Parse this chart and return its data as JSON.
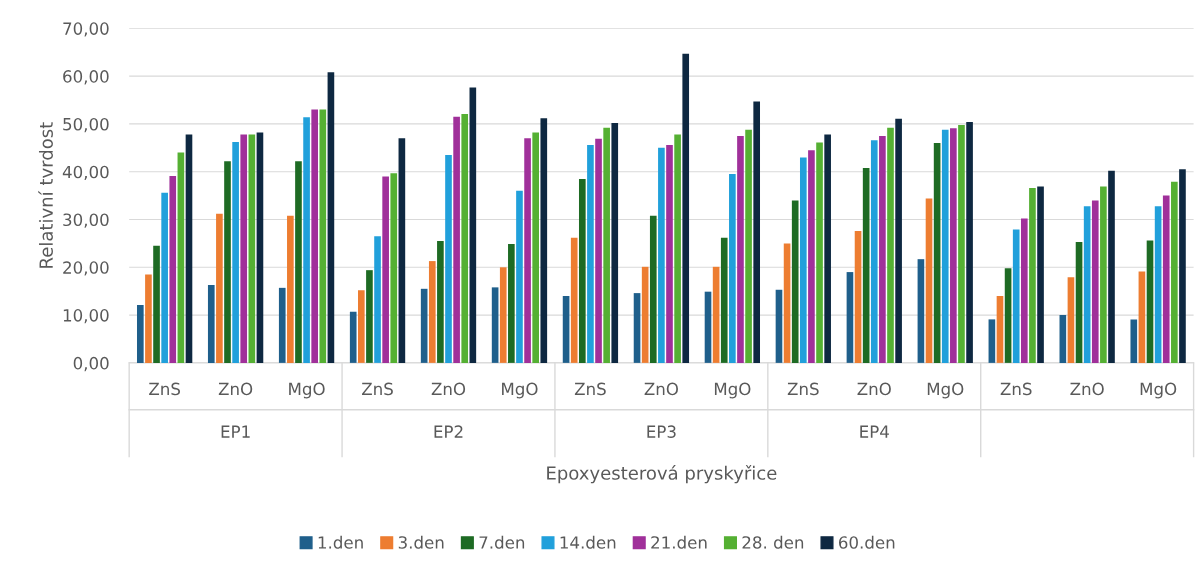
{
  "chart_data": {
    "type": "bar",
    "xlabel": "Epoxyesterová pryskyřice",
    "ylabel": "Relativní tvrdost",
    "categories": [
      "ZnS",
      "ZnO",
      "MgO",
      "ZnS",
      "ZnO",
      "MgO",
      "ZnS",
      "ZnO",
      "MgO",
      "ZnS",
      "ZnO",
      "MgO",
      "ZnS",
      "ZnO",
      "MgO"
    ],
    "annotations": [
      "EP1",
      "EP2",
      "EP3",
      "EP4"
    ],
    "series": [
      {
        "name": "1.den",
        "color": "#1f5f8b",
        "values": [
          12.1,
          16.3,
          15.7,
          10.7,
          15.5,
          15.8,
          14.0,
          14.6,
          14.9,
          15.3,
          19.0,
          21.7,
          9.1,
          10.0,
          9.1
        ]
      },
      {
        "name": "3.den",
        "color": "#ed7d31",
        "values": [
          18.5,
          31.2,
          30.8,
          15.2,
          21.3,
          20.0,
          26.2,
          20.1,
          20.1,
          25.0,
          27.6,
          34.4,
          14.0,
          17.9,
          19.1
        ]
      },
      {
        "name": "7.den",
        "color": "#1e6b24",
        "values": [
          24.5,
          42.2,
          42.2,
          19.4,
          25.5,
          24.9,
          38.5,
          30.8,
          26.2,
          34.0,
          40.8,
          46.0,
          19.8,
          25.3,
          25.6
        ]
      },
      {
        "name": "14.den",
        "color": "#21a0db",
        "values": [
          35.6,
          46.2,
          51.4,
          26.5,
          43.5,
          36.0,
          45.6,
          45.0,
          39.5,
          43.0,
          46.6,
          48.8,
          27.9,
          32.8,
          32.8
        ]
      },
      {
        "name": "21.den",
        "color": "#a0309a",
        "values": [
          39.1,
          47.8,
          53.0,
          39.0,
          51.5,
          47.0,
          46.9,
          45.6,
          47.5,
          44.5,
          47.5,
          49.1,
          30.2,
          34.0,
          35.0
        ]
      },
      {
        "name": "28. den",
        "color": "#55b033",
        "values": [
          44.0,
          47.8,
          53.0,
          39.7,
          52.1,
          48.2,
          49.2,
          47.8,
          48.8,
          46.1,
          49.2,
          49.8,
          36.6,
          36.9,
          37.9
        ]
      },
      {
        "name": "60.den",
        "color": "#0e2841",
        "values": [
          47.8,
          48.2,
          60.8,
          47.0,
          57.6,
          51.2,
          50.2,
          64.7,
          54.7,
          47.8,
          51.1,
          50.4,
          36.9,
          40.2,
          40.5
        ]
      }
    ],
    "ylim": [
      0,
      70
    ],
    "yticks": [
      {
        "value": 0,
        "label": "0,00"
      },
      {
        "value": 10,
        "label": "10,00"
      },
      {
        "value": 20,
        "label": "20,00"
      },
      {
        "value": 30,
        "label": "30,00"
      },
      {
        "value": 40,
        "label": "40,00"
      },
      {
        "value": 50,
        "label": "50,00"
      },
      {
        "value": 60,
        "label": "60,00"
      },
      {
        "value": 70,
        "label": "70,00"
      }
    ],
    "grid": "y",
    "legend": "bottom"
  }
}
